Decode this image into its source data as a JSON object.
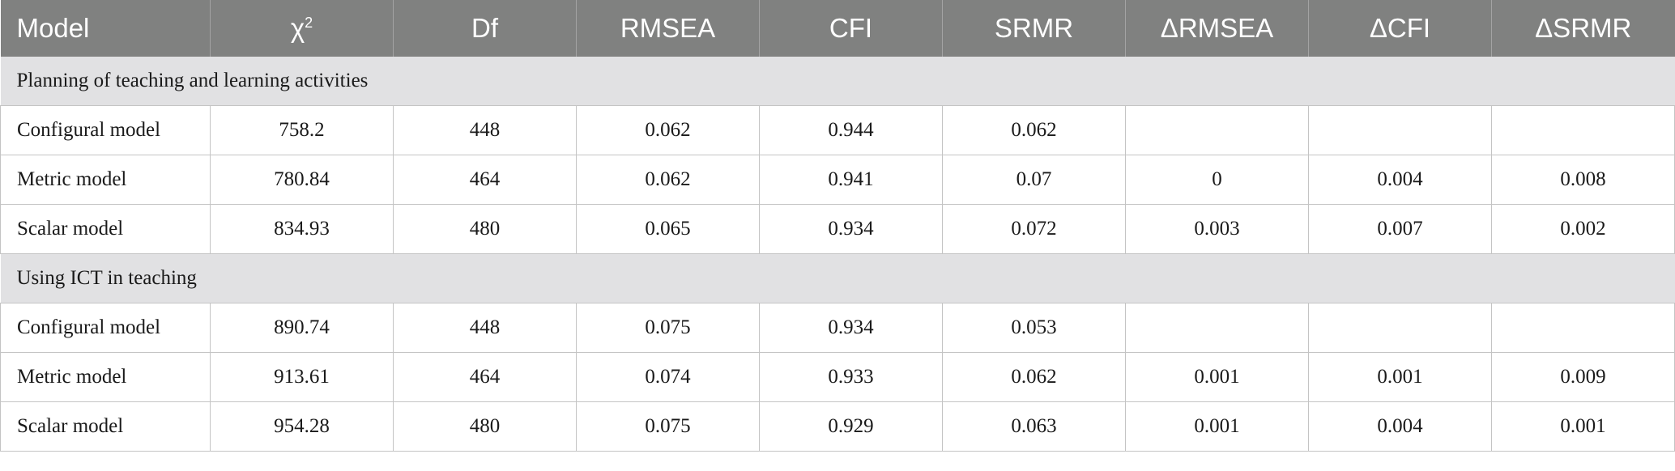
{
  "headers": [
    "Model",
    "χ",
    "Df",
    "RMSEA",
    "CFI",
    "SRMR",
    "ΔRMSEA",
    "ΔCFI",
    "ΔSRMR"
  ],
  "chi_sup": "2",
  "sections": [
    {
      "title": "Planning of teaching and learning activities",
      "rows": [
        [
          "Configural model",
          "758.2",
          "448",
          "0.062",
          "0.944",
          "0.062",
          "",
          "",
          ""
        ],
        [
          "Metric model",
          "780.84",
          "464",
          "0.062",
          "0.941",
          "0.07",
          "0",
          "0.004",
          "0.008"
        ],
        [
          "Scalar model",
          "834.93",
          "480",
          "0.065",
          "0.934",
          "0.072",
          "0.003",
          "0.007",
          "0.002"
        ]
      ]
    },
    {
      "title": "Using ICT in teaching",
      "rows": [
        [
          "Configural model",
          "890.74",
          "448",
          "0.075",
          "0.934",
          "0.053",
          "",
          "",
          ""
        ],
        [
          "Metric model",
          "913.61",
          "464",
          "0.074",
          "0.933",
          "0.062",
          "0.001",
          "0.001",
          "0.009"
        ],
        [
          "Scalar model",
          "954.28",
          "480",
          "0.075",
          "0.929",
          "0.063",
          "0.001",
          "0.004",
          "0.001"
        ]
      ]
    }
  ]
}
